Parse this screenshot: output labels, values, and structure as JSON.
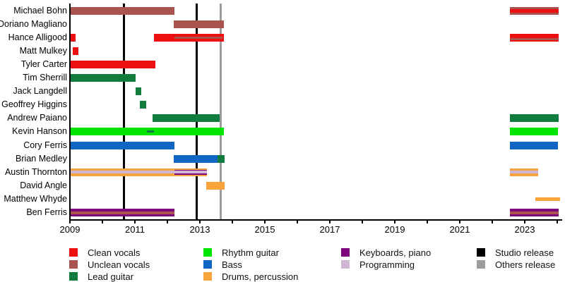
{
  "chart_data": {
    "type": "timeline",
    "title": "",
    "axis": {
      "start_year": 2009,
      "end_year": 2024.1,
      "tick_years": [
        2009,
        2010,
        2011,
        2012,
        2013,
        2014,
        2015,
        2016,
        2017,
        2018,
        2019,
        2020,
        2021,
        2022,
        2023,
        2024
      ],
      "label_years": [
        2009,
        2011,
        2013,
        2015,
        2017,
        2019,
        2021,
        2023
      ]
    },
    "colors": {
      "clean_vocals": "#ee1010",
      "unclean_vocals": "#a9544e",
      "lead_guitar": "#107c3e",
      "rhythm_guitar": "#00e500",
      "bass": "#1166c4",
      "drums": "#f9a33c",
      "keyboards": "#7d067d",
      "programming": "#d0b5d4",
      "studio": "#000000",
      "others": "#9c9c9c"
    },
    "releases": [
      {
        "kind": "studio",
        "year": 2010.67
      },
      {
        "kind": "studio",
        "year": 2012.91
      },
      {
        "kind": "others",
        "year": 2013.65
      }
    ],
    "members": [
      {
        "name": "Michael Bohn",
        "bars": [
          {
            "role": "unclean_vocals",
            "start": 2009.02,
            "end": 2012.22
          },
          {
            "role": "unclean_vocals",
            "start": 2022.54,
            "end": 2024.04,
            "stripes": [
              {
                "role": "clean_vocals",
                "top": 0.27,
                "height": 0.46
              }
            ]
          }
        ]
      },
      {
        "name": "Doriano Magliano",
        "bars": [
          {
            "role": "unclean_vocals",
            "start": 2012.2,
            "end": 2013.74
          }
        ]
      },
      {
        "name": "Hance Alligood",
        "bars": [
          {
            "role": "clean_vocals",
            "start": 2009.02,
            "end": 2009.17
          },
          {
            "role": "clean_vocals",
            "start": 2011.59,
            "end": 2013.74,
            "stripes": [
              {
                "role": "unclean_vocals",
                "start": 2012.22,
                "end": 2013.7,
                "top": 0.36,
                "height": 0.28
              }
            ]
          },
          {
            "role": "clean_vocals",
            "start": 2022.54,
            "end": 2024.04,
            "stripes": [
              {
                "role": "unclean_vocals",
                "top": 0.5,
                "height": 0.3
              }
            ]
          }
        ]
      },
      {
        "name": "Matt Mulkey",
        "bars": [
          {
            "role": "clean_vocals",
            "start": 2009.09,
            "end": 2009.26
          }
        ]
      },
      {
        "name": "Tyler Carter",
        "bars": [
          {
            "role": "clean_vocals",
            "start": 2009.02,
            "end": 2011.63
          }
        ]
      },
      {
        "name": "Tim Sherrill",
        "bars": [
          {
            "role": "lead_guitar",
            "start": 2009.02,
            "end": 2011.02
          }
        ]
      },
      {
        "name": "Jack Langdell",
        "bars": [
          {
            "role": "lead_guitar",
            "start": 2011.02,
            "end": 2011.2
          }
        ]
      },
      {
        "name": "Geoffrey Higgins",
        "bars": [
          {
            "role": "lead_guitar",
            "start": 2011.15,
            "end": 2011.35
          }
        ]
      },
      {
        "name": "Andrew Paiano",
        "bars": [
          {
            "role": "lead_guitar",
            "start": 2011.54,
            "end": 2013.61
          },
          {
            "role": "lead_guitar",
            "start": 2022.54,
            "end": 2024.04
          }
        ]
      },
      {
        "name": "Kevin Hanson",
        "bars": [
          {
            "role": "rhythm_guitar",
            "start": 2009.02,
            "end": 2013.74,
            "stripes": [
              {
                "role": "lead_guitar",
                "start": 2011.37,
                "end": 2011.59,
                "top": 0.36,
                "height": 0.28
              }
            ]
          },
          {
            "role": "rhythm_guitar",
            "start": 2022.54,
            "end": 2024.02
          }
        ]
      },
      {
        "name": "Cory Ferris",
        "bars": [
          {
            "role": "bass",
            "start": 2009.02,
            "end": 2012.22
          },
          {
            "role": "bass",
            "start": 2022.54,
            "end": 2024.02
          }
        ]
      },
      {
        "name": "Brian Medley",
        "bars": [
          {
            "role": "bass",
            "start": 2012.2,
            "end": 2013.54
          },
          {
            "role": "lead_guitar",
            "start": 2013.54,
            "end": 2013.76
          }
        ]
      },
      {
        "name": "Austin Thornton",
        "bars": [
          {
            "role": "drums",
            "start": 2009.02,
            "end": 2013.22,
            "stripes": [
              {
                "role": "programming",
                "top": 0.33,
                "height": 0.34
              },
              {
                "role": "keyboards",
                "start": 2012.22,
                "end": 2013.22,
                "top": 0.18,
                "height": 0.15
              },
              {
                "role": "keyboards",
                "start": 2012.22,
                "end": 2013.22,
                "top": 0.67,
                "height": 0.15
              }
            ]
          },
          {
            "role": "drums",
            "start": 2022.54,
            "end": 2023.41,
            "stripes": [
              {
                "role": "programming",
                "top": 0.33,
                "height": 0.34
              }
            ]
          }
        ]
      },
      {
        "name": "David Angle",
        "bars": [
          {
            "role": "drums",
            "start": 2013.2,
            "end": 2013.76
          }
        ]
      },
      {
        "name": "Matthew Whyde",
        "bars": [
          {
            "role": "drums",
            "start": 2023.33,
            "end": 2024.09,
            "thin": true
          }
        ]
      },
      {
        "name": "Ben Ferris",
        "bars": [
          {
            "role": "keyboards",
            "start": 2009.02,
            "end": 2012.22,
            "stripes": [
              {
                "role": "unclean_vocals",
                "top": 0.42,
                "height": 0.33
              }
            ]
          },
          {
            "role": "keyboards",
            "start": 2022.54,
            "end": 2024.04,
            "stripes": [
              {
                "role": "unclean_vocals",
                "top": 0.42,
                "height": 0.33
              }
            ]
          }
        ]
      }
    ],
    "legend": {
      "columns": [
        {
          "items": [
            {
              "key": "clean_vocals",
              "label": "Clean vocals"
            },
            {
              "key": "unclean_vocals",
              "label": "Unclean vocals"
            },
            {
              "key": "lead_guitar",
              "label": "Lead guitar"
            }
          ]
        },
        {
          "items": [
            {
              "key": "rhythm_guitar",
              "label": "Rhythm guitar"
            },
            {
              "key": "bass",
              "label": "Bass"
            },
            {
              "key": "drums",
              "label": "Drums, percussion"
            }
          ]
        },
        {
          "items": [
            {
              "key": "keyboards",
              "label": "Keyboards, piano"
            },
            {
              "key": "programming",
              "label": "Programming"
            }
          ]
        },
        {
          "items": [
            {
              "key": "studio",
              "label": "Studio release"
            },
            {
              "key": "others",
              "label": "Others release"
            }
          ]
        }
      ]
    }
  }
}
